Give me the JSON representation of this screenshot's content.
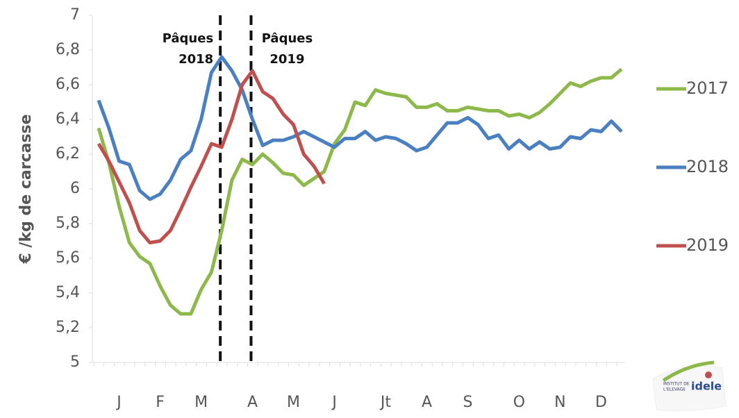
{
  "chart_data": {
    "type": "line",
    "y_label": "€ /kg de carcasse",
    "categories": [
      null,
      null,
      "J",
      null,
      null,
      null,
      "F",
      null,
      null,
      null,
      "M",
      null,
      null,
      null,
      null,
      "A",
      null,
      null,
      null,
      "M",
      null,
      null,
      null,
      "J",
      null,
      null,
      null,
      null,
      "Jt",
      null,
      null,
      null,
      "A",
      null,
      null,
      null,
      "S",
      null,
      null,
      null,
      null,
      "O",
      null,
      null,
      null,
      "N",
      null,
      null,
      null,
      "D",
      null,
      null
    ],
    "series": [
      {
        "name": "2017",
        "color": "#8db84a",
        "values": [
          6.35,
          6.15,
          5.9,
          5.69,
          5.61,
          5.57,
          5.44,
          5.33,
          5.28,
          5.28,
          5.42,
          5.52,
          5.76,
          6.05,
          6.17,
          6.14,
          6.2,
          6.15,
          6.09,
          6.08,
          6.02,
          6.06,
          6.1,
          6.26,
          6.34,
          6.5,
          6.48,
          6.57,
          6.55,
          6.54,
          6.53,
          6.47,
          6.47,
          6.49,
          6.45,
          6.45,
          6.47,
          6.46,
          6.45,
          6.45,
          6.42,
          6.43,
          6.41,
          6.44,
          6.49,
          6.55,
          6.61,
          6.59,
          6.62,
          6.64,
          6.64,
          6.69
        ]
      },
      {
        "name": "2018",
        "color": "#4a7fc1",
        "values": [
          6.51,
          6.35,
          6.16,
          6.14,
          5.99,
          5.94,
          5.97,
          6.05,
          6.17,
          6.22,
          6.4,
          6.67,
          6.76,
          6.68,
          6.57,
          6.4,
          6.25,
          6.28,
          6.28,
          6.3,
          6.33,
          6.3,
          6.27,
          6.24,
          6.29,
          6.29,
          6.33,
          6.28,
          6.3,
          6.29,
          6.26,
          6.22,
          6.24,
          6.31,
          6.38,
          6.38,
          6.41,
          6.37,
          6.29,
          6.31,
          6.23,
          6.28,
          6.23,
          6.27,
          6.23,
          6.24,
          6.3,
          6.29,
          6.34,
          6.33,
          6.39,
          6.33
        ]
      },
      {
        "name": "2019",
        "color": "#c0504d",
        "values": [
          6.26,
          6.16,
          6.04,
          5.92,
          5.76,
          5.69,
          5.7,
          5.76,
          5.88,
          6.01,
          6.13,
          6.26,
          6.24,
          6.4,
          6.6,
          6.68,
          6.56,
          6.52,
          6.43,
          6.37,
          6.2,
          6.13,
          6.03,
          null,
          null,
          null,
          null,
          null,
          null,
          null,
          null,
          null,
          null,
          null,
          null,
          null,
          null,
          null,
          null,
          null,
          null,
          null,
          null,
          null,
          null,
          null,
          null,
          null,
          null,
          null,
          null,
          null
        ]
      }
    ],
    "ylim": [
      5,
      7
    ],
    "yticks": [
      5,
      {
        "value": 5.2,
        "label": "5,2"
      },
      {
        "value": 5.4,
        "label": "5,4"
      },
      {
        "value": 5.6,
        "label": "5,6"
      },
      {
        "value": 5.8,
        "label": "5,8"
      },
      6,
      {
        "value": 6.2,
        "label": "6,2"
      },
      {
        "value": 6.4,
        "label": "6,4"
      },
      {
        "value": 6.6,
        "label": "6,6"
      },
      {
        "value": 6.8,
        "label": "6,8"
      },
      7
    ],
    "grid": false,
    "annotations": [
      {
        "x": 12,
        "lines": [
          "Pâques",
          "2018"
        ],
        "side": "left"
      },
      {
        "x": 15,
        "lines": [
          "Pâques",
          "2019"
        ],
        "side": "right"
      }
    ],
    "logo": {
      "small": [
        "INSTITUT DE",
        "L'ELEVAGE"
      ],
      "brand": "idele"
    }
  }
}
